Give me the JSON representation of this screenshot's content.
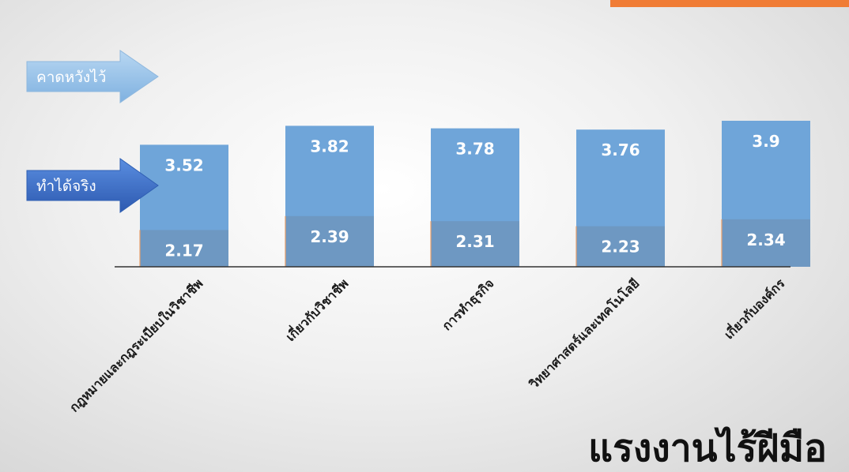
{
  "chart_data": {
    "type": "bar",
    "categories": [
      "กฎหมายและกฎระเบียบในวิชาชีพ",
      "เกี่ยวกับวิชาชีพ",
      "การทำธุรกิจ",
      "วิทยาศาสตร์และเทคโนโลยี",
      "เกี่ยวกับองค์กร"
    ],
    "series": [
      {
        "name": "คาดหวังไว้",
        "values": [
          3.52,
          3.82,
          3.78,
          3.76,
          3.9
        ]
      },
      {
        "name": "ทำได้จริง",
        "values": [
          2.17,
          2.39,
          2.31,
          2.23,
          2.34
        ]
      }
    ],
    "colors": {
      "expected": "#6fa5d9",
      "actual": "#6e98c2",
      "axis": "#333333",
      "arrow_top": "#9cc4e8",
      "arrow_bottom": "#3f6fc4",
      "banner": "#f07c35"
    },
    "legend_placement": "left-arrows",
    "grid": false
  },
  "title": "แรงงานไร้ฝีมือ"
}
